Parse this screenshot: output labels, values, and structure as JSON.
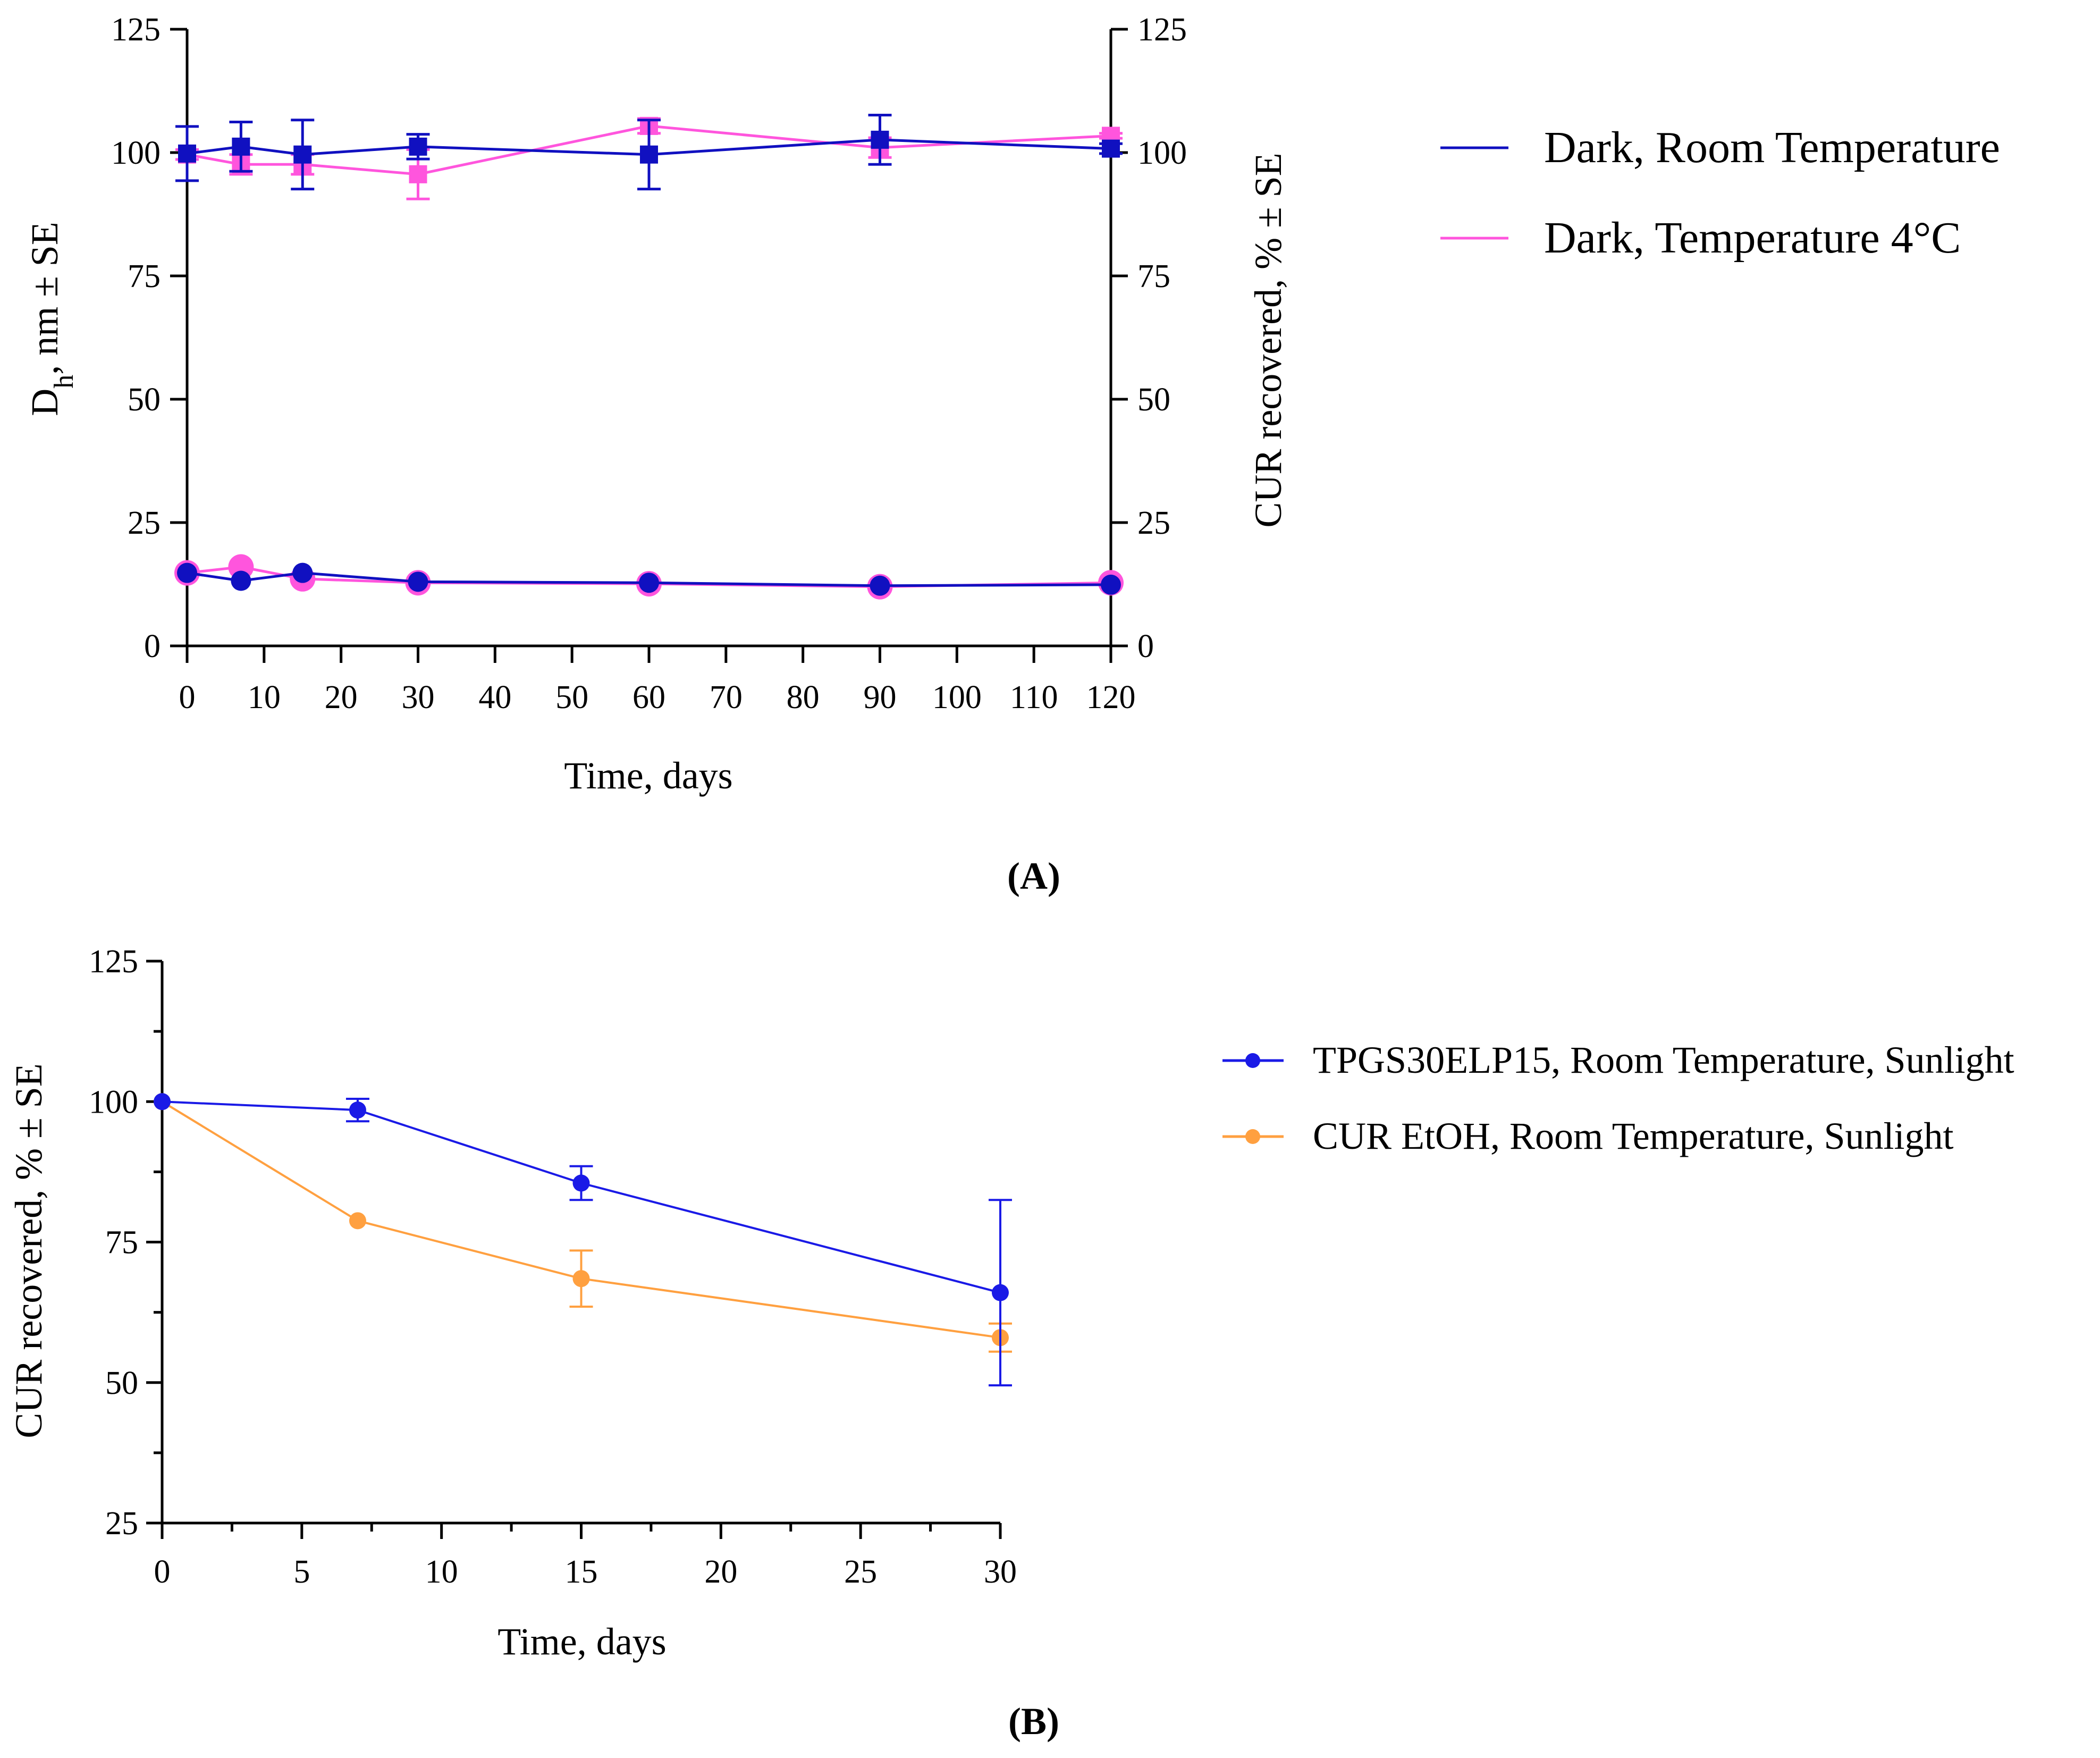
{
  "chart_data": [
    {
      "panel": "A",
      "panel_label": "(A)",
      "type": "line",
      "xlabel": "Time, days",
      "ylabel_left_main": "D",
      "ylabel_left_sub": "h",
      "ylabel_left_rest": ", nm ± SE",
      "ylabel_right": "CUR recovered, % ± SE",
      "xlim": [
        0,
        120
      ],
      "ylim": [
        0,
        125
      ],
      "xticks": [
        0,
        10,
        20,
        30,
        40,
        50,
        60,
        70,
        80,
        90,
        100,
        110,
        120
      ],
      "yticks": [
        0,
        25,
        50,
        75,
        100,
        125
      ],
      "tick_labels_x": [
        "0",
        "10",
        "20",
        "30",
        "40",
        "50",
        "60",
        "70",
        "80",
        "90",
        "100",
        "110",
        "120"
      ],
      "tick_labels_y": [
        "0",
        "25",
        "50",
        "75",
        "100",
        "125"
      ],
      "legend": [
        "Dark, Room Temperature",
        "Dark, Temperature 4°C"
      ],
      "series": [
        {
          "name": "Dark, Room Temperature",
          "measure": "CUR recovered",
          "axis": "right",
          "marker": "square",
          "color": "#1010c0",
          "x": [
            0,
            7,
            15,
            30,
            60,
            90,
            120
          ],
          "y": [
            99.8,
            101.2,
            99.6,
            101.2,
            99.6,
            102.6,
            100.8
          ],
          "err": [
            5.5,
            5,
            7,
            2.5,
            7,
            5,
            1
          ]
        },
        {
          "name": "Dark, Temperature 4°C",
          "measure": "CUR recovered",
          "axis": "right",
          "marker": "square",
          "color": "#ff55dd",
          "x": [
            0,
            7,
            15,
            30,
            60,
            90,
            120
          ],
          "y": [
            99.6,
            97.6,
            97.6,
            95.6,
            105.4,
            101.0,
            103.4
          ],
          "err": [
            1,
            2,
            2,
            5,
            1.5,
            2,
            0.5
          ]
        },
        {
          "name": "Dark, Temperature 4°C",
          "measure": "Dh",
          "axis": "left",
          "marker": "circle",
          "color": "#ff55dd",
          "x": [
            0,
            7,
            15,
            30,
            60,
            90,
            120
          ],
          "y": [
            14.8,
            16.0,
            13.6,
            12.8,
            12.6,
            12.0,
            12.8
          ],
          "err": [
            0,
            0,
            0,
            0,
            0,
            0,
            0
          ]
        },
        {
          "name": "Dark, Room Temperature",
          "measure": "Dh",
          "axis": "left",
          "marker": "circle",
          "color": "#1010c0",
          "x": [
            0,
            7,
            15,
            30,
            60,
            90,
            120
          ],
          "y": [
            14.8,
            13.2,
            14.8,
            13.0,
            12.8,
            12.2,
            12.4
          ],
          "err": [
            0,
            0,
            0,
            0,
            0,
            0,
            0
          ]
        }
      ]
    },
    {
      "panel": "B",
      "panel_label": "(B)",
      "type": "line",
      "xlabel": "Time, days",
      "ylabel": "CUR recovered, % ± SE",
      "xlim": [
        0,
        30
      ],
      "ylim": [
        25,
        125
      ],
      "xticks": [
        0,
        5,
        10,
        15,
        20,
        25,
        30
      ],
      "yticks": [
        25,
        50,
        75,
        100,
        125
      ],
      "tick_labels_x": [
        "0",
        "5",
        "10",
        "15",
        "20",
        "25",
        "30"
      ],
      "tick_labels_y": [
        "25",
        "50",
        "75",
        "100",
        "125"
      ],
      "legend": [
        "TPGS30ELP15, Room Temperature, Sunlight",
        "CUR EtOH, Room Temperature, Sunlight"
      ],
      "series": [
        {
          "name": "TPGS30ELP15, Room Temperature, Sunlight",
          "marker": "circle",
          "color": "#1a1ae6",
          "x": [
            0,
            7,
            15,
            30
          ],
          "y": [
            100,
            98.5,
            85.5,
            66
          ],
          "err": [
            0,
            2,
            3,
            16.5
          ]
        },
        {
          "name": "CUR EtOH, Room Temperature, Sunlight",
          "marker": "circle",
          "color": "#ffa040",
          "x": [
            0,
            7,
            15,
            30
          ],
          "y": [
            100,
            78.8,
            68.5,
            58
          ],
          "err": [
            0,
            0,
            5,
            2.5
          ]
        }
      ]
    }
  ]
}
